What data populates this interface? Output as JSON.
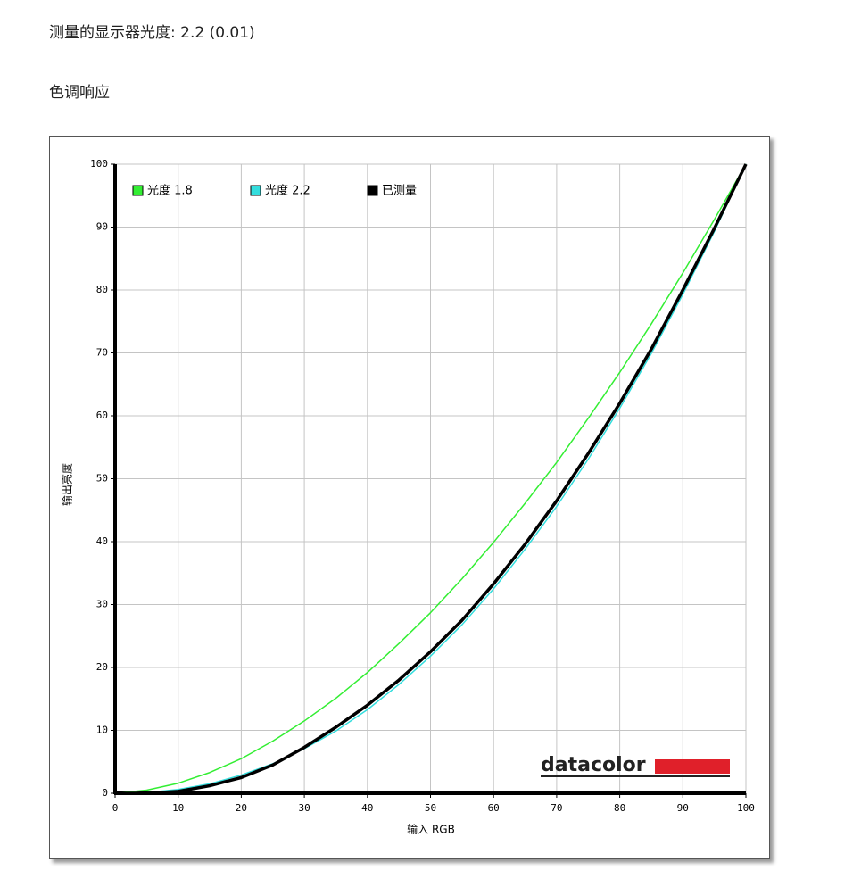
{
  "header": {
    "title": "测量的显示器光度: 2.2 (0.01)",
    "section": "色调响应"
  },
  "chart_data": {
    "type": "line",
    "xlabel": "输入 RGB",
    "ylabel": "输出亮度",
    "logo": "datacolor",
    "x": [
      0,
      5,
      10,
      15,
      20,
      25,
      30,
      35,
      40,
      45,
      50,
      55,
      60,
      65,
      70,
      75,
      80,
      85,
      90,
      95,
      100
    ],
    "series": [
      {
        "name": "光度 1.8",
        "color": "#33ee33",
        "values": [
          0,
          0.5,
          1.6,
          3.3,
          5.5,
          8.3,
          11.5,
          15.1,
          19.2,
          23.8,
          28.7,
          34.1,
          39.9,
          46.1,
          52.6,
          59.6,
          66.9,
          74.6,
          82.7,
          91.2,
          100
        ]
      },
      {
        "name": "光度 2.2",
        "color": "#33dddd",
        "values": [
          0,
          0.1,
          0.6,
          1.5,
          2.9,
          4.7,
          7.1,
          9.9,
          13.3,
          17.3,
          21.8,
          26.8,
          32.5,
          38.8,
          45.6,
          53.1,
          61.2,
          69.9,
          79.3,
          89.3,
          100
        ]
      },
      {
        "name": "已测量",
        "color": "#000000",
        "values": [
          0,
          0,
          0.3,
          1.2,
          2.5,
          4.5,
          7.3,
          10.5,
          14.0,
          18.0,
          22.5,
          27.5,
          33.3,
          39.6,
          46.5,
          54.0,
          62.0,
          70.6,
          80.0,
          89.8,
          100
        ]
      }
    ],
    "xlim": [
      0,
      100
    ],
    "ylim": [
      0,
      100
    ],
    "xticks": [
      0,
      10,
      20,
      30,
      40,
      50,
      60,
      70,
      80,
      90,
      100
    ],
    "yticks": [
      0,
      10,
      20,
      30,
      40,
      50,
      60,
      70,
      80,
      90,
      100
    ],
    "grid": true
  }
}
